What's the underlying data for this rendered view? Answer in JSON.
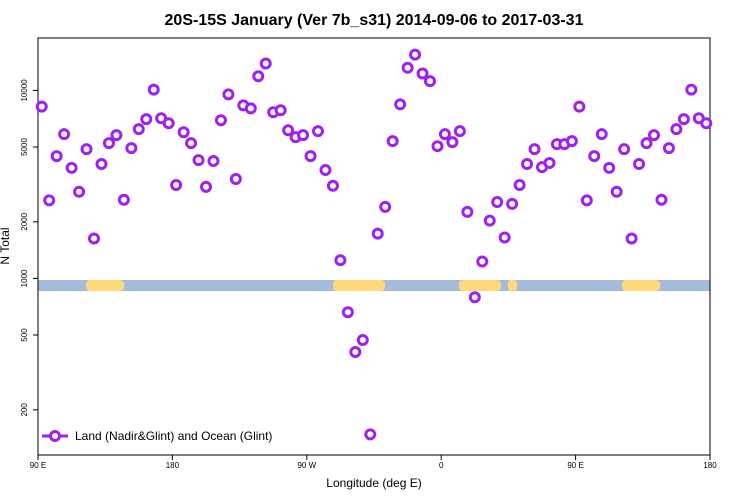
{
  "chart_data": {
    "type": "scatter",
    "title": "20S-15S January (Ver 7b_s31)   2014-09-06 to 2017-03-31",
    "xlabel": "Longitude (deg E)",
    "ylabel": "N Total",
    "y_scale": "log",
    "legend": "lower left",
    "xlim": [
      90,
      540
    ],
    "xticks": [
      {
        "value": 90,
        "label": "90 E"
      },
      {
        "value": 180,
        "label": "180"
      },
      {
        "value": 270,
        "label": "90 W"
      },
      {
        "value": 360,
        "label": "0"
      },
      {
        "value": 450,
        "label": "90 E"
      },
      {
        "value": 540,
        "label": "180"
      }
    ],
    "ylim": [
      115,
      19000
    ],
    "yticks": [
      200,
      500,
      1000,
      2000,
      5000,
      10000
    ],
    "series": [
      {
        "name": "Land (Nadir&Glint) and Ocean (Glint)",
        "color": "#a020f0",
        "x": [
          92.5,
          97.5,
          102.5,
          107.5,
          112.5,
          117.5,
          122.5,
          127.5,
          132.5,
          137.5,
          142.5,
          147.5,
          152.5,
          157.5,
          162.5,
          167.5,
          172.5,
          177.5,
          182.5,
          187.5,
          192.5,
          197.5,
          202.5,
          207.5,
          212.5,
          217.5,
          222.5,
          227.5,
          232.5,
          237.5,
          242.5,
          247.5,
          252.5,
          257.5,
          262.5,
          267.5,
          272.5,
          277.5,
          282.5,
          287.5,
          292.5,
          297.5,
          302.5,
          307.5,
          312.5,
          317.5,
          322.5,
          327.5,
          332.5,
          337.5,
          342.5,
          347.5,
          352.5,
          357.5,
          362.5,
          367.5,
          372.5,
          377.5,
          382.5,
          387.5,
          392.5,
          397.5,
          402.5,
          407.5,
          412.5,
          417.5,
          422.5,
          427.5,
          432.5,
          437.5,
          442.5,
          447.5,
          452.5,
          457.5,
          462.5,
          467.5,
          472.5,
          477.5,
          482.5,
          487.5,
          492.5,
          497.5,
          502.5,
          507.5,
          512.5,
          517.5,
          522.5,
          527.5,
          532.5,
          537.5
        ],
        "values": [
          8200,
          2600,
          4470,
          5850,
          3870,
          2890,
          4870,
          1630,
          4060,
          5240,
          5780,
          2620,
          4930,
          6220,
          7030,
          10100,
          7110,
          6690,
          3140,
          5990,
          5240,
          4260,
          3070,
          4210,
          6940,
          9520,
          3380,
          8330,
          8030,
          11900,
          13900,
          7650,
          7840,
          6140,
          5640,
          5780,
          4470,
          6070,
          3770,
          3110,
          1250,
          661,
          406,
          470,
          148,
          1730,
          2400,
          5370,
          8430,
          13200,
          15500,
          12300,
          11200,
          5050,
          5850,
          5310,
          6070,
          2260,
          794,
          1230,
          2030,
          2550,
          1650,
          2490,
          3140,
          4060,
          4870,
          3910,
          4110,
          5180,
          5180,
          5370,
          8200,
          2600,
          4470,
          5850,
          3870,
          2890,
          4870,
          1630,
          4060,
          5240,
          5780,
          2620,
          4930,
          6220,
          7030,
          10100,
          7110,
          6690
        ]
      }
    ]
  }
}
